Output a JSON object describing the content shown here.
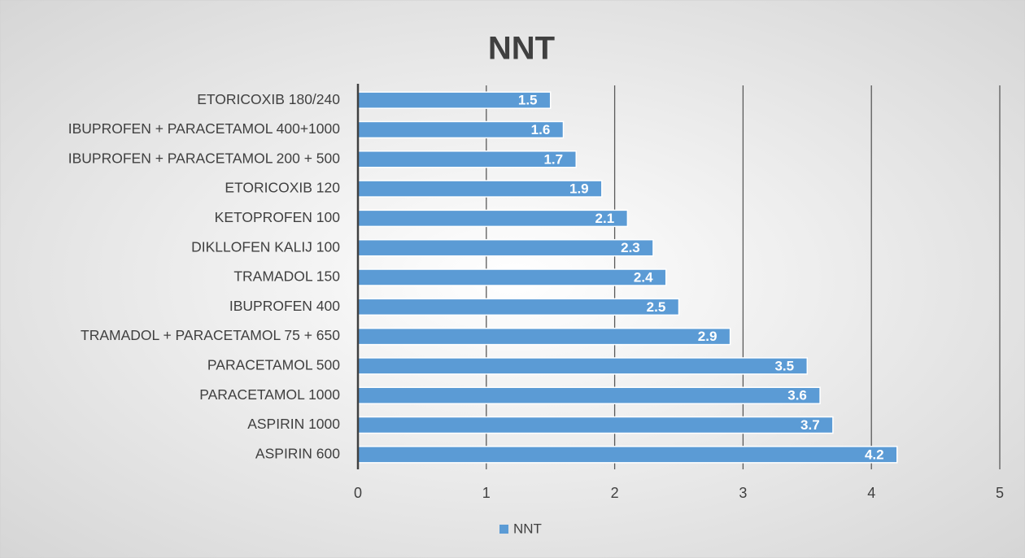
{
  "chart_data": {
    "type": "bar",
    "orientation": "horizontal",
    "title": "NNT",
    "categories": [
      "ETORICOXIB 180/240",
      "IBUPROFEN + PARACETAMOL 400+1000",
      "IBUPROFEN + PARACETAMOL 200 + 500",
      "ETORICOXIB 120",
      "KETOPROFEN 100",
      "DIKLLOFEN KALIJ 100",
      "TRAMADOL 150",
      "IBUPROFEN 400",
      "TRAMADOL + PARACETAMOL 75 + 650",
      "PARACETAMOL 500",
      "PARACETAMOL 1000",
      "ASPIRIN 1000",
      "ASPIRIN 600"
    ],
    "series": [
      {
        "name": "NNT",
        "color": "#5b9bd5",
        "values": [
          1.5,
          1.6,
          1.7,
          1.9,
          2.1,
          2.3,
          2.4,
          2.5,
          2.9,
          3.5,
          3.6,
          3.7,
          4.2
        ]
      }
    ],
    "xlim": [
      0,
      5
    ],
    "xticks": [
      0,
      1,
      2,
      3,
      4,
      5
    ],
    "grid": true,
    "legend": "bottom",
    "data_labels": true
  }
}
